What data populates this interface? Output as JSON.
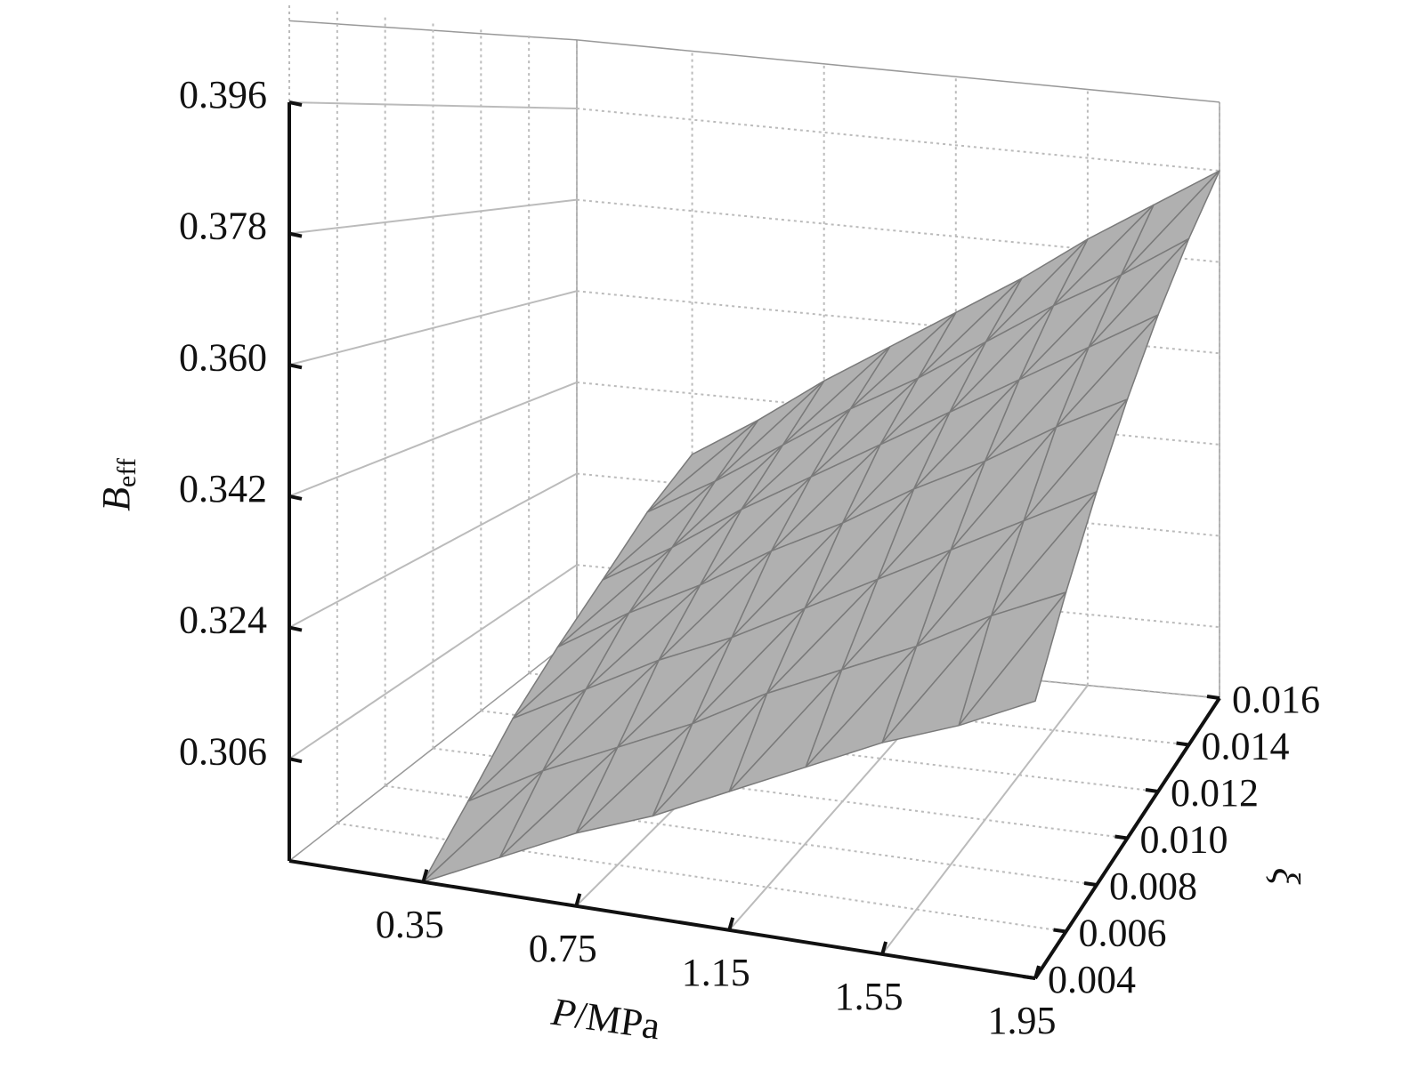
{
  "chart_data": {
    "type": "surface",
    "zlabel": {
      "main": "B",
      "sub": "eff"
    },
    "xlabel": {
      "var": "P",
      "unit": "/MPa"
    },
    "ylabel": "ξ",
    "x": [
      0.35,
      0.55,
      0.75,
      0.95,
      1.15,
      1.35,
      1.55,
      1.75,
      1.95
    ],
    "y": [
      0.004,
      0.006,
      0.008,
      0.01,
      0.012,
      0.014,
      0.016
    ],
    "values": [
      [
        0.292,
        0.298,
        0.305,
        0.311,
        0.317,
        0.324,
        0.33
      ],
      [
        0.297,
        0.304,
        0.311,
        0.318,
        0.324,
        0.331,
        0.338
      ],
      [
        0.302,
        0.309,
        0.317,
        0.324,
        0.332,
        0.339,
        0.347
      ],
      [
        0.306,
        0.314,
        0.322,
        0.331,
        0.339,
        0.347,
        0.355
      ],
      [
        0.311,
        0.32,
        0.328,
        0.337,
        0.346,
        0.354,
        0.363
      ],
      [
        0.316,
        0.325,
        0.334,
        0.344,
        0.353,
        0.362,
        0.371
      ],
      [
        0.321,
        0.33,
        0.34,
        0.35,
        0.36,
        0.37,
        0.38
      ],
      [
        0.325,
        0.336,
        0.346,
        0.357,
        0.367,
        0.377,
        0.388
      ],
      [
        0.33,
        0.341,
        0.352,
        0.363,
        0.374,
        0.385,
        0.396
      ]
    ],
    "xlim": [
      0,
      1.95
    ],
    "ylim": [
      0.004,
      0.016
    ],
    "zlim": [
      0.292,
      0.396
    ],
    "xticks": [
      0.35,
      0.75,
      1.15,
      1.55,
      1.95
    ],
    "yticks": [
      0.004,
      0.006,
      0.008,
      {
        "value": 0.01,
        "label": "0.010"
      },
      0.012,
      0.014,
      0.016
    ],
    "zticks": [
      0.306,
      0.324,
      0.342,
      {
        "value": 0.36,
        "label": "0.360"
      },
      0.378,
      0.396
    ],
    "surface_color": "#b0b0b0",
    "edge_color": "#7a7a7a",
    "grid": true
  }
}
